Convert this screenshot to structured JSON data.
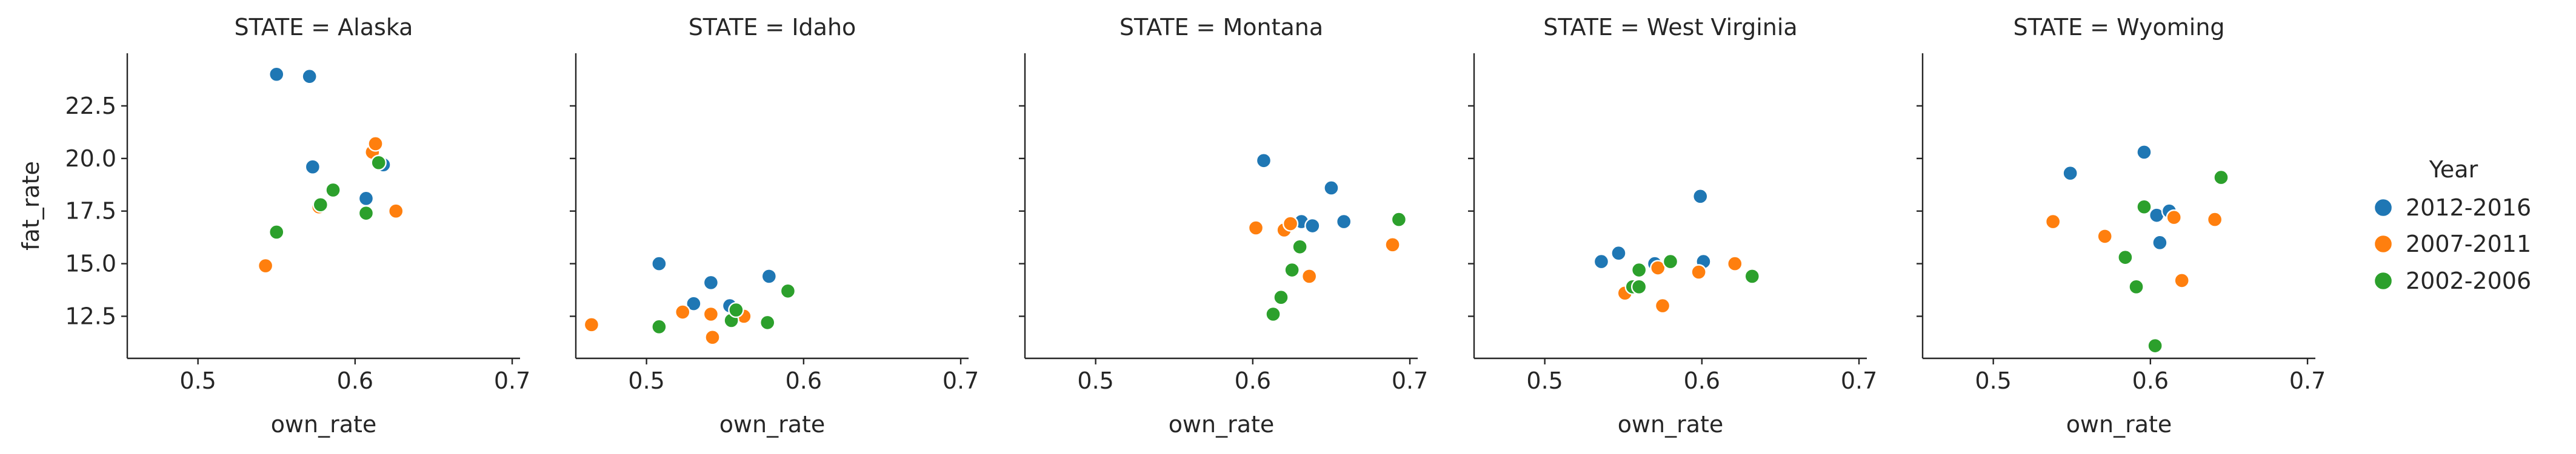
{
  "chart_data": {
    "type": "scatter",
    "facet_variable": "STATE",
    "hue_variable": "Year",
    "xlabel": "own_rate",
    "ylabel": "fat_rate",
    "xlim": [
      0.455,
      0.705
    ],
    "ylim": [
      10.5,
      25.0
    ],
    "xticks": [
      0.5,
      0.6,
      0.7
    ],
    "yticks": [
      12.5,
      15.0,
      17.5,
      20.0,
      22.5
    ],
    "legend": {
      "title": "Year",
      "position": "right"
    },
    "series": [
      {
        "name": "2012-2016",
        "color": "#1f77b4"
      },
      {
        "name": "2007-2011",
        "color": "#ff7f0e"
      },
      {
        "name": "2002-2006",
        "color": "#2ca02c"
      }
    ],
    "panels": [
      {
        "title": "STATE = Alaska",
        "points": {
          "2012-2016": [
            [
              0.55,
              24.0
            ],
            [
              0.571,
              23.9
            ],
            [
              0.573,
              19.6
            ],
            [
              0.607,
              18.1
            ],
            [
              0.618,
              19.7
            ]
          ],
          "2007-2011": [
            [
              0.543,
              14.9
            ],
            [
              0.577,
              17.7
            ],
            [
              0.611,
              20.3
            ],
            [
              0.613,
              20.7
            ],
            [
              0.626,
              17.5
            ]
          ],
          "2002-2006": [
            [
              0.55,
              16.5
            ],
            [
              0.578,
              17.8
            ],
            [
              0.586,
              18.5
            ],
            [
              0.607,
              17.4
            ],
            [
              0.615,
              19.8
            ]
          ]
        }
      },
      {
        "title": "STATE = Idaho",
        "points": {
          "2012-2016": [
            [
              0.508,
              15.0
            ],
            [
              0.53,
              13.1
            ],
            [
              0.541,
              14.1
            ],
            [
              0.553,
              13.0
            ],
            [
              0.578,
              14.4
            ]
          ],
          "2007-2011": [
            [
              0.465,
              12.1
            ],
            [
              0.523,
              12.7
            ],
            [
              0.541,
              12.6
            ],
            [
              0.542,
              11.5
            ],
            [
              0.562,
              12.5
            ]
          ],
          "2002-2006": [
            [
              0.508,
              12.0
            ],
            [
              0.554,
              12.3
            ],
            [
              0.557,
              12.8
            ],
            [
              0.577,
              12.2
            ],
            [
              0.59,
              13.7
            ]
          ]
        }
      },
      {
        "title": "STATE = Montana",
        "points": {
          "2012-2016": [
            [
              0.607,
              19.9
            ],
            [
              0.631,
              17.0
            ],
            [
              0.638,
              16.8
            ],
            [
              0.65,
              18.6
            ],
            [
              0.658,
              17.0
            ]
          ],
          "2007-2011": [
            [
              0.602,
              16.7
            ],
            [
              0.62,
              16.6
            ],
            [
              0.624,
              16.9
            ],
            [
              0.636,
              14.4
            ],
            [
              0.689,
              15.9
            ]
          ],
          "2002-2006": [
            [
              0.613,
              12.6
            ],
            [
              0.618,
              13.4
            ],
            [
              0.625,
              14.7
            ],
            [
              0.63,
              15.8
            ],
            [
              0.693,
              17.1
            ]
          ]
        }
      },
      {
        "title": "STATE = West Virginia",
        "points": {
          "2012-2016": [
            [
              0.536,
              15.1
            ],
            [
              0.547,
              15.5
            ],
            [
              0.57,
              15.0
            ],
            [
              0.599,
              18.2
            ],
            [
              0.601,
              15.1
            ]
          ],
          "2007-2011": [
            [
              0.551,
              13.6
            ],
            [
              0.572,
              14.8
            ],
            [
              0.575,
              13.0
            ],
            [
              0.598,
              14.6
            ],
            [
              0.621,
              15.0
            ]
          ],
          "2002-2006": [
            [
              0.556,
              13.9
            ],
            [
              0.56,
              14.7
            ],
            [
              0.56,
              13.9
            ],
            [
              0.58,
              15.1
            ],
            [
              0.632,
              14.4
            ]
          ]
        }
      },
      {
        "title": "STATE = Wyoming",
        "points": {
          "2012-2016": [
            [
              0.549,
              19.3
            ],
            [
              0.596,
              20.3
            ],
            [
              0.604,
              17.3
            ],
            [
              0.606,
              16.0
            ],
            [
              0.612,
              17.5
            ]
          ],
          "2007-2011": [
            [
              0.538,
              17.0
            ],
            [
              0.571,
              16.3
            ],
            [
              0.615,
              17.2
            ],
            [
              0.62,
              14.2
            ],
            [
              0.641,
              17.1
            ]
          ],
          "2002-2006": [
            [
              0.584,
              15.3
            ],
            [
              0.591,
              13.9
            ],
            [
              0.596,
              17.7
            ],
            [
              0.603,
              11.1
            ],
            [
              0.645,
              19.1
            ]
          ]
        }
      }
    ]
  }
}
